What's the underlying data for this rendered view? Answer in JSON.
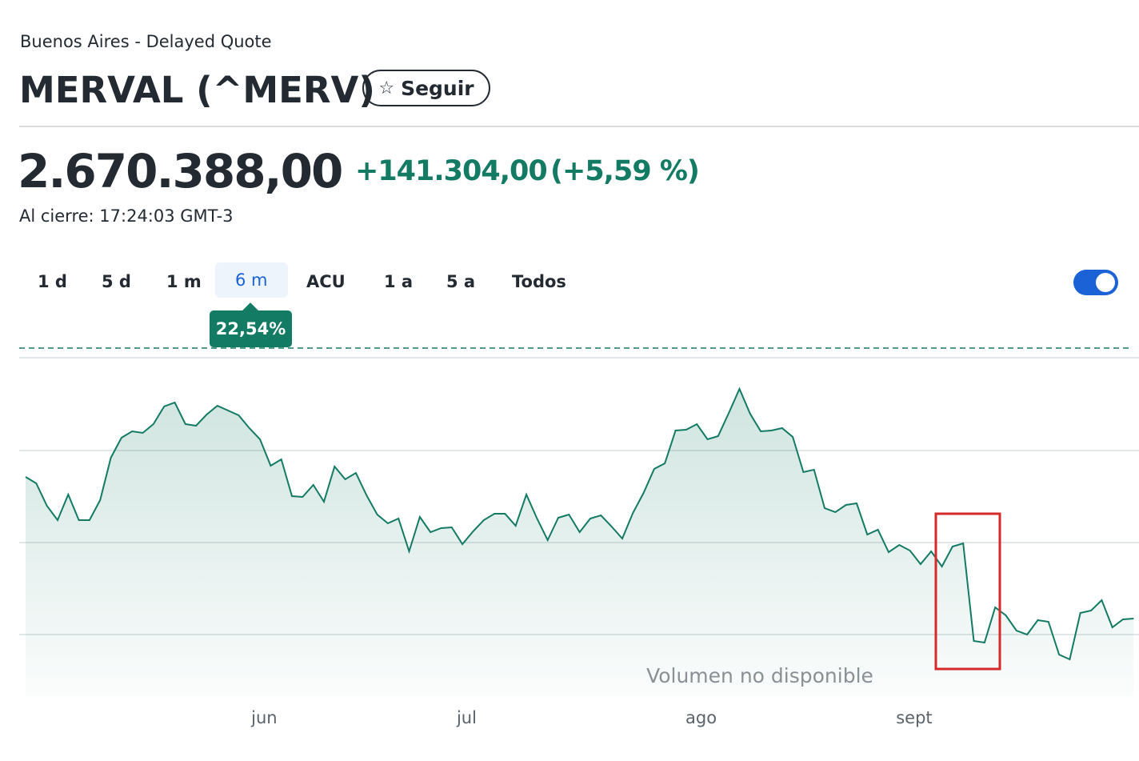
{
  "header": {
    "exchange": "Buenos Aires - Delayed Quote",
    "title": "MERVAL (^MERV)",
    "follow_button": "Seguir"
  },
  "quote": {
    "price": "2.670.388,00",
    "change": "+141.304,00",
    "change_percent": "(+5,59 %)",
    "market_time": "Al cierre: 17:24:03 GMT-3"
  },
  "range_tabs": {
    "items": [
      "1 d",
      "5 d",
      "1 m",
      "6 m",
      "ACU",
      "1 a",
      "5 a",
      "Todos"
    ],
    "selected": 3,
    "return_badge": "22,54%"
  },
  "chart_data": {
    "type": "line",
    "color": "#137a63",
    "x": [
      0,
      1,
      2,
      3,
      4,
      5,
      6,
      7,
      8,
      9,
      10,
      11,
      12,
      13,
      14,
      15,
      16,
      17,
      18,
      19,
      20,
      21,
      22,
      23,
      24,
      25,
      26,
      27,
      28,
      29,
      30,
      31,
      32,
      33,
      34,
      35,
      36,
      37,
      38,
      39,
      40,
      41,
      42,
      43,
      44,
      45,
      46,
      47,
      48,
      49,
      50,
      51,
      52,
      53,
      54,
      55,
      56,
      57,
      58,
      59,
      60,
      61,
      62,
      63,
      64,
      65,
      66,
      67,
      68,
      69,
      70,
      71,
      72,
      73,
      74,
      75,
      76,
      77,
      78,
      79,
      80,
      81,
      82,
      83,
      84,
      85,
      86,
      87,
      88,
      89,
      90,
      91,
      92,
      93,
      94,
      95,
      96,
      97,
      98,
      99,
      100,
      101,
      102,
      103,
      104
    ],
    "values": [
      274,
      266,
      238,
      220,
      252,
      220,
      220,
      245,
      298,
      323,
      331,
      329,
      340,
      362,
      367,
      340,
      338,
      352,
      363,
      357,
      351,
      335,
      321,
      288,
      296,
      250,
      249,
      264,
      243,
      287,
      271,
      279,
      251,
      227,
      216,
      222,
      181,
      224,
      205,
      210,
      211,
      190,
      206,
      220,
      228,
      228,
      213,
      252,
      222,
      195,
      223,
      227,
      205,
      222,
      226,
      212,
      197,
      229,
      254,
      284,
      291,
      332,
      333,
      340,
      321,
      325,
      354,
      384,
      353,
      331,
      332,
      335,
      324,
      280,
      283,
      235,
      230,
      239,
      241,
      202,
      208,
      180,
      189,
      182,
      165,
      181,
      162,
      187,
      191,
      69,
      67,
      111,
      101,
      82,
      77,
      95,
      93,
      52,
      46,
      104,
      107,
      120,
      86,
      96,
      97
    ],
    "xlim": [
      0,
      104.5
    ],
    "ylim": [
      0,
      440
    ],
    "xticks": [
      {
        "value": 22.4,
        "label": "jun"
      },
      {
        "value": 41.4,
        "label": "jul"
      },
      {
        "value": 63.4,
        "label": "ago"
      },
      {
        "value": 83.4,
        "label": "sept"
      }
    ],
    "yticks": [
      77,
      192,
      307,
      423
    ],
    "grid": true,
    "reference_line": 435,
    "annotation": "Volumen no disponible"
  }
}
